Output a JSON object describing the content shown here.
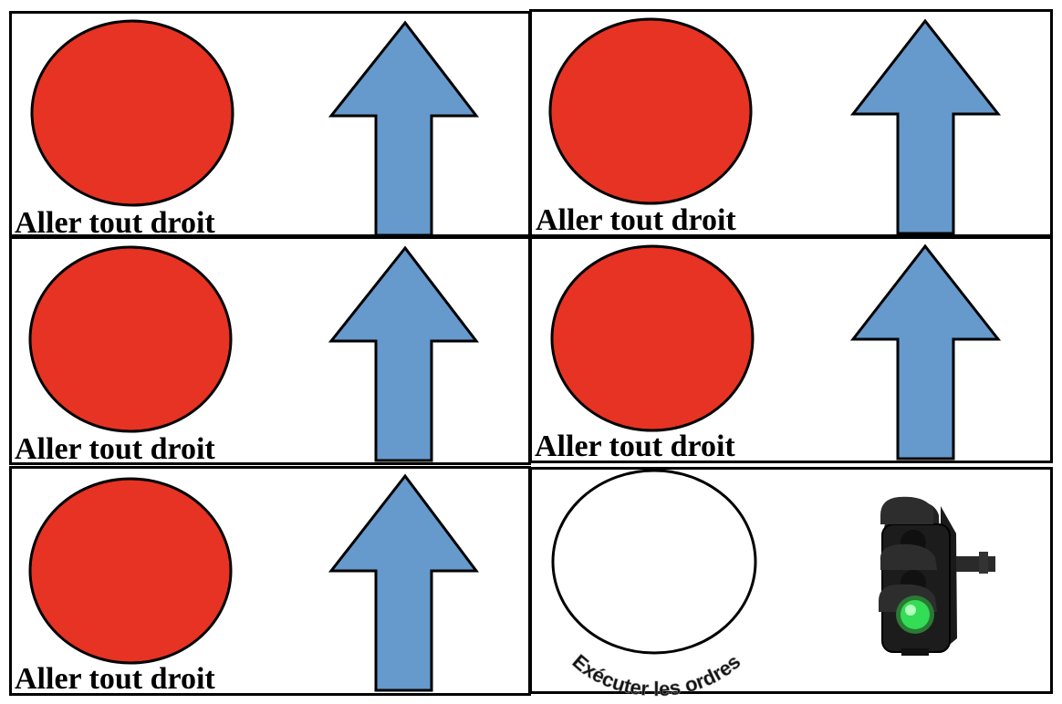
{
  "colors": {
    "red_disc": "#e63323",
    "arrow": "#6699cc",
    "outline": "#000000",
    "light_green": "#33dd55"
  },
  "cards": [
    {
      "label": "Aller tout droit",
      "icon": "red-circle",
      "arrow": "up-arrow"
    },
    {
      "label": "Aller tout droit",
      "icon": "red-circle",
      "arrow": "up-arrow"
    },
    {
      "label": "Aller tout droit",
      "icon": "red-circle",
      "arrow": "up-arrow"
    },
    {
      "label": "Aller tout droit",
      "icon": "red-circle",
      "arrow": "up-arrow"
    },
    {
      "label": "Aller tout droit",
      "icon": "red-circle",
      "arrow": "up-arrow"
    }
  ],
  "final_card": {
    "curved_text": "Exécuter les ordres",
    "icon": "traffic-light-green"
  }
}
